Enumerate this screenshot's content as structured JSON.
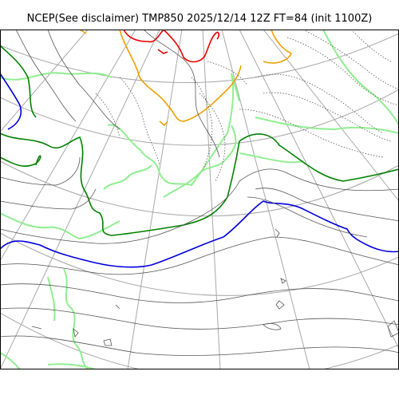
{
  "title": "NCEP(See disclaimer) TMP850 2025/12/14 12Z FT=84 (init 1100Z)",
  "colors": {
    "graticule": "#a8a8a8",
    "isotherm_thin": "#555555",
    "isotherm_dotted": "#555555",
    "isotherm_light_green": "#90ee90",
    "isotherm_dark_green": "#008000",
    "isotherm_blue": "#0000dd",
    "isotherm_orange": "#f0a000",
    "isotherm_red": "#ee0000",
    "frame": "#000000"
  }
}
